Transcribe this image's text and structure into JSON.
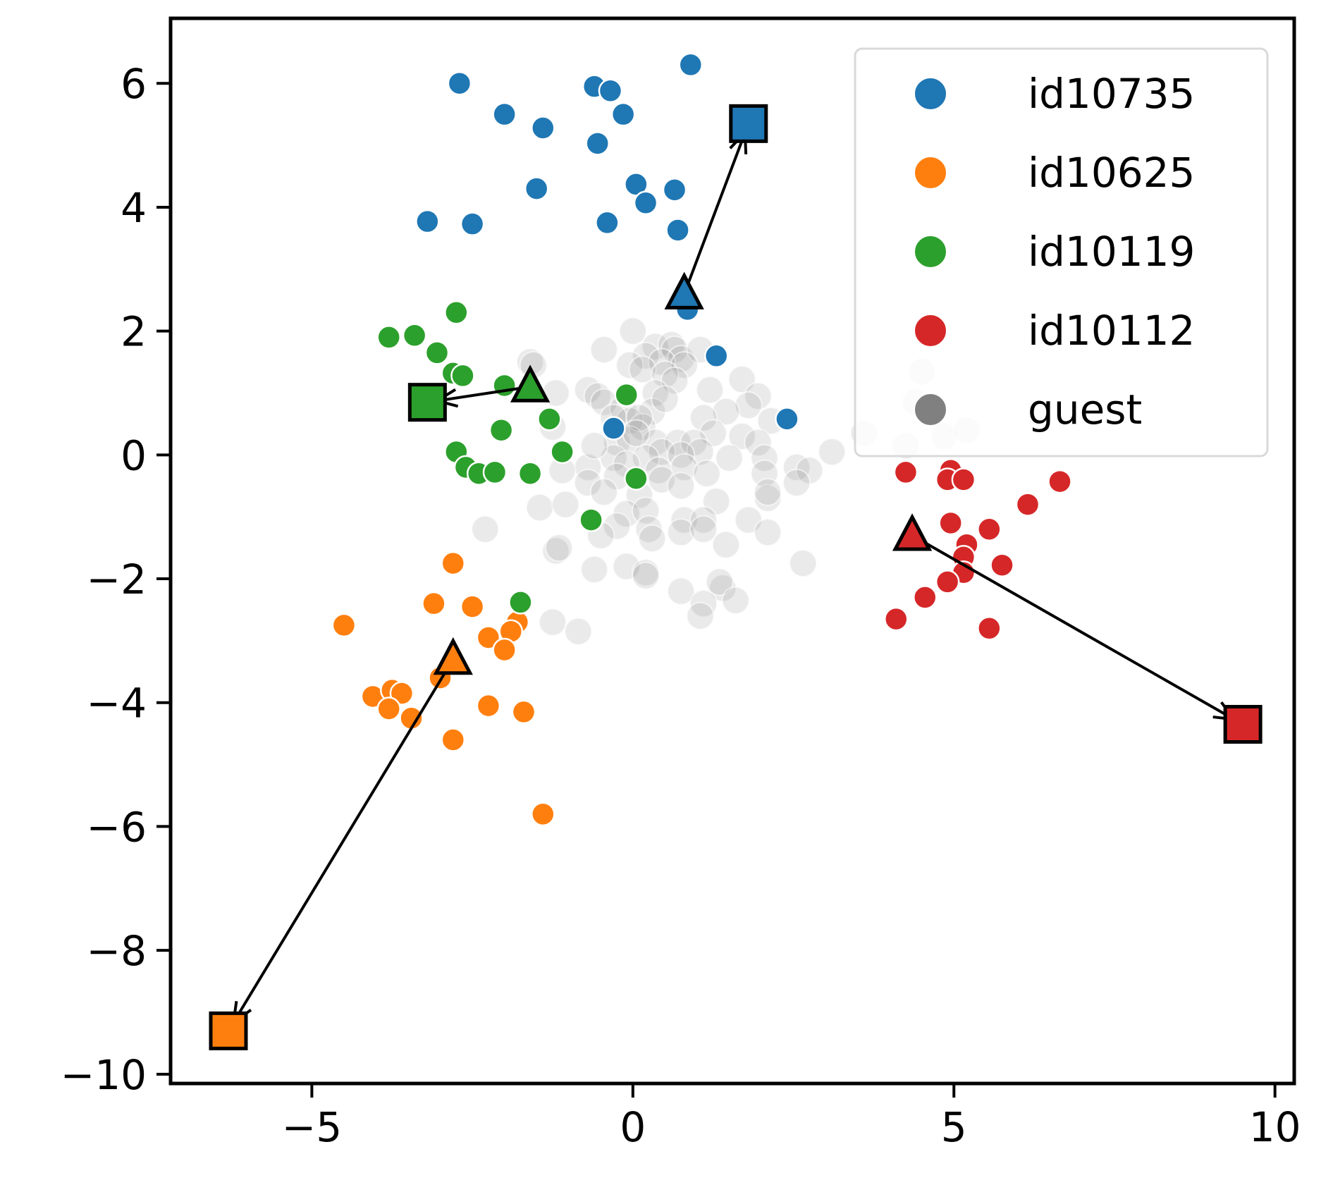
{
  "chart_data": {
    "type": "scatter",
    "title": "",
    "xlabel": "",
    "ylabel": "",
    "xlim": [
      -7.2,
      10.3
    ],
    "ylim": [
      -10.15,
      7.05
    ],
    "xticks": [
      -5,
      0,
      5,
      10
    ],
    "yticks": [
      -10,
      -8,
      -6,
      -4,
      -2,
      0,
      2,
      4,
      6
    ],
    "xtick_labels": [
      "−5",
      "0",
      "5",
      "10"
    ],
    "ytick_labels": [
      "−10",
      "−8",
      "−6",
      "−4",
      "−2",
      "0",
      "2",
      "4",
      "6"
    ],
    "grid": false,
    "legend_position": "top-right",
    "series": [
      {
        "name": "id10735",
        "color": "#1f77b4",
        "points": [
          [
            -2.7,
            6.0
          ],
          [
            -0.6,
            5.95
          ],
          [
            -0.35,
            5.88
          ],
          [
            0.9,
            6.3
          ],
          [
            -2.0,
            5.5
          ],
          [
            -1.4,
            5.28
          ],
          [
            -0.15,
            5.5
          ],
          [
            -0.55,
            5.03
          ],
          [
            -1.5,
            4.3
          ],
          [
            0.05,
            4.37
          ],
          [
            0.2,
            4.07
          ],
          [
            0.65,
            4.28
          ],
          [
            -3.2,
            3.77
          ],
          [
            -2.5,
            3.73
          ],
          [
            -0.4,
            3.75
          ],
          [
            0.7,
            3.63
          ],
          [
            0.85,
            2.35
          ],
          [
            1.3,
            1.6
          ],
          [
            2.4,
            0.58
          ],
          [
            -0.3,
            0.43
          ]
        ],
        "centroid": [
          0.8,
          2.6
        ],
        "target": [
          1.8,
          5.35
        ]
      },
      {
        "name": "id10625",
        "color": "#ff7f0e",
        "points": [
          [
            -2.8,
            -1.75
          ],
          [
            -3.1,
            -2.4
          ],
          [
            -2.5,
            -2.45
          ],
          [
            -4.5,
            -2.75
          ],
          [
            -2.25,
            -2.95
          ],
          [
            -1.8,
            -2.7
          ],
          [
            -1.9,
            -2.85
          ],
          [
            -2.0,
            -3.15
          ],
          [
            -3.0,
            -3.6
          ],
          [
            -4.05,
            -3.9
          ],
          [
            -3.75,
            -3.8
          ],
          [
            -3.6,
            -3.85
          ],
          [
            -3.8,
            -4.1
          ],
          [
            -3.45,
            -4.25
          ],
          [
            -2.25,
            -4.05
          ],
          [
            -1.7,
            -4.15
          ],
          [
            -2.8,
            -4.6
          ],
          [
            -1.4,
            -5.8
          ]
        ],
        "centroid": [
          -2.8,
          -3.3
        ],
        "target": [
          -6.3,
          -9.3
        ]
      },
      {
        "name": "id10119",
        "color": "#2ca02c",
        "points": [
          [
            -2.75,
            2.3
          ],
          [
            -3.8,
            1.9
          ],
          [
            -3.4,
            1.93
          ],
          [
            -3.05,
            1.65
          ],
          [
            -2.8,
            1.32
          ],
          [
            -2.65,
            1.28
          ],
          [
            -2.0,
            1.12
          ],
          [
            -0.1,
            0.97
          ],
          [
            -1.3,
            0.58
          ],
          [
            -2.05,
            0.4
          ],
          [
            -1.1,
            0.05
          ],
          [
            -2.75,
            0.05
          ],
          [
            -2.6,
            -0.2
          ],
          [
            -2.4,
            -0.3
          ],
          [
            -2.15,
            -0.28
          ],
          [
            -1.6,
            -0.3
          ],
          [
            0.05,
            -0.38
          ],
          [
            -0.65,
            -1.05
          ],
          [
            -1.75,
            -2.38
          ]
        ],
        "centroid": [
          -1.6,
          1.1
        ],
        "target": [
          -3.2,
          0.85
        ]
      },
      {
        "name": "id10112",
        "color": "#d62728",
        "points": [
          [
            4.25,
            -0.28
          ],
          [
            4.95,
            -0.25
          ],
          [
            4.9,
            -0.4
          ],
          [
            5.15,
            -0.4
          ],
          [
            6.65,
            -0.43
          ],
          [
            6.15,
            -0.8
          ],
          [
            4.95,
            -1.1
          ],
          [
            5.55,
            -1.2
          ],
          [
            5.2,
            -1.45
          ],
          [
            5.15,
            -1.65
          ],
          [
            5.75,
            -1.78
          ],
          [
            5.15,
            -1.9
          ],
          [
            4.9,
            -2.05
          ],
          [
            4.55,
            -2.3
          ],
          [
            4.1,
            -2.65
          ],
          [
            5.55,
            -2.8
          ]
        ],
        "centroid": [
          4.35,
          -1.3
        ],
        "target": [
          9.5,
          -4.35
        ]
      },
      {
        "name": "guest",
        "color": "#808080",
        "points": [
          [
            0.0,
            2.0
          ],
          [
            -0.45,
            1.7
          ],
          [
            0.35,
            1.75
          ],
          [
            0.6,
            1.78
          ],
          [
            0.65,
            1.7
          ],
          [
            0.75,
            1.55
          ],
          [
            1.05,
            1.7
          ],
          [
            0.2,
            1.6
          ],
          [
            0.45,
            1.5
          ],
          [
            0.8,
            1.45
          ],
          [
            -0.05,
            1.45
          ],
          [
            0.15,
            1.38
          ],
          [
            0.5,
            1.3
          ],
          [
            -1.6,
            1.5
          ],
          [
            -1.55,
            1.45
          ],
          [
            0.65,
            1.2
          ],
          [
            1.7,
            1.22
          ],
          [
            -1.2,
            1.0
          ],
          [
            -0.7,
            1.05
          ],
          [
            -0.55,
            0.95
          ],
          [
            0.35,
            1.0
          ],
          [
            1.95,
            0.95
          ],
          [
            -0.45,
            0.85
          ],
          [
            1.8,
            0.8
          ],
          [
            -0.15,
            0.75
          ],
          [
            0.3,
            0.7
          ],
          [
            -1.25,
            0.45
          ],
          [
            1.45,
            0.7
          ],
          [
            -0.05,
            0.55
          ],
          [
            0.15,
            0.45
          ],
          [
            -0.3,
            0.6
          ],
          [
            0.1,
            0.6
          ],
          [
            1.1,
            0.6
          ],
          [
            2.15,
            0.55
          ],
          [
            0.35,
            0.2
          ],
          [
            0.7,
            0.2
          ],
          [
            1.25,
            0.35
          ],
          [
            1.7,
            0.3
          ],
          [
            1.95,
            0.2
          ],
          [
            0.95,
            0.2
          ],
          [
            -0.25,
            0.2
          ],
          [
            -0.05,
            0.25
          ],
          [
            0.45,
            0.05
          ],
          [
            1.05,
            0.05
          ],
          [
            3.1,
            0.05
          ],
          [
            -0.3,
            -0.05
          ],
          [
            0.2,
            -0.05
          ],
          [
            0.75,
            0.0
          ],
          [
            1.5,
            -0.05
          ],
          [
            2.05,
            -0.05
          ],
          [
            -0.7,
            -0.2
          ],
          [
            -0.1,
            -0.15
          ],
          [
            0.4,
            -0.25
          ],
          [
            0.8,
            -0.2
          ],
          [
            2.05,
            -0.3
          ],
          [
            2.55,
            -0.2
          ],
          [
            2.75,
            -0.25
          ],
          [
            -1.1,
            -0.25
          ],
          [
            -0.25,
            -0.35
          ],
          [
            0.45,
            -0.4
          ],
          [
            1.15,
            -0.3
          ],
          [
            -0.7,
            -0.45
          ],
          [
            0.75,
            -0.5
          ],
          [
            2.55,
            -0.45
          ],
          [
            -0.45,
            -0.6
          ],
          [
            0.1,
            -0.65
          ],
          [
            1.3,
            -0.75
          ],
          [
            2.1,
            -0.7
          ],
          [
            2.1,
            -0.6
          ],
          [
            -1.45,
            -0.85
          ],
          [
            -1.05,
            -0.8
          ],
          [
            -0.1,
            -0.95
          ],
          [
            0.2,
            -0.9
          ],
          [
            0.8,
            -1.05
          ],
          [
            1.1,
            -1.05
          ],
          [
            1.8,
            -1.05
          ],
          [
            -0.25,
            -1.15
          ],
          [
            0.25,
            -1.2
          ],
          [
            0.75,
            -1.25
          ],
          [
            1.1,
            -1.2
          ],
          [
            2.1,
            -1.25
          ],
          [
            -2.3,
            -1.2
          ],
          [
            -0.5,
            -1.3
          ],
          [
            0.3,
            -1.35
          ],
          [
            1.45,
            -1.45
          ],
          [
            -1.2,
            -1.55
          ],
          [
            -1.15,
            -1.5
          ],
          [
            -0.6,
            -1.85
          ],
          [
            -0.1,
            -1.8
          ],
          [
            0.2,
            -1.9
          ],
          [
            2.65,
            -1.75
          ],
          [
            0.2,
            -1.95
          ],
          [
            0.75,
            -2.2
          ],
          [
            1.4,
            -2.15
          ],
          [
            1.35,
            -2.05
          ],
          [
            1.6,
            -2.35
          ],
          [
            1.1,
            -2.4
          ],
          [
            1.05,
            -2.6
          ],
          [
            -1.25,
            -2.7
          ],
          [
            -0.85,
            -2.85
          ],
          [
            4.5,
            1.35
          ],
          [
            3.6,
            0.35
          ],
          [
            4.25,
            0.15
          ],
          [
            4.85,
            0.3
          ],
          [
            5.2,
            0.4
          ],
          [
            4.4,
            0.85
          ],
          [
            0.05,
            0.35
          ],
          [
            0.5,
            0.9
          ],
          [
            -0.6,
            0.15
          ],
          [
            1.2,
            1.05
          ]
        ]
      }
    ],
    "arrows": [
      {
        "series": "id10735",
        "from": [
          0.8,
          2.6
        ],
        "to": [
          1.8,
          5.35
        ]
      },
      {
        "series": "id10625",
        "from": [
          -2.8,
          -3.3
        ],
        "to": [
          -6.3,
          -9.3
        ]
      },
      {
        "series": "id10119",
        "from": [
          -1.6,
          1.1
        ],
        "to": [
          -3.2,
          0.85
        ]
      },
      {
        "series": "id10112",
        "from": [
          4.35,
          -1.3
        ],
        "to": [
          9.5,
          -4.35
        ]
      }
    ],
    "legend": [
      {
        "label": "id10735",
        "color": "#1f77b4"
      },
      {
        "label": "id10625",
        "color": "#ff7f0e"
      },
      {
        "label": "id10119",
        "color": "#2ca02c"
      },
      {
        "label": "id10112",
        "color": "#d62728"
      },
      {
        "label": "guest",
        "color": "#808080"
      }
    ]
  }
}
